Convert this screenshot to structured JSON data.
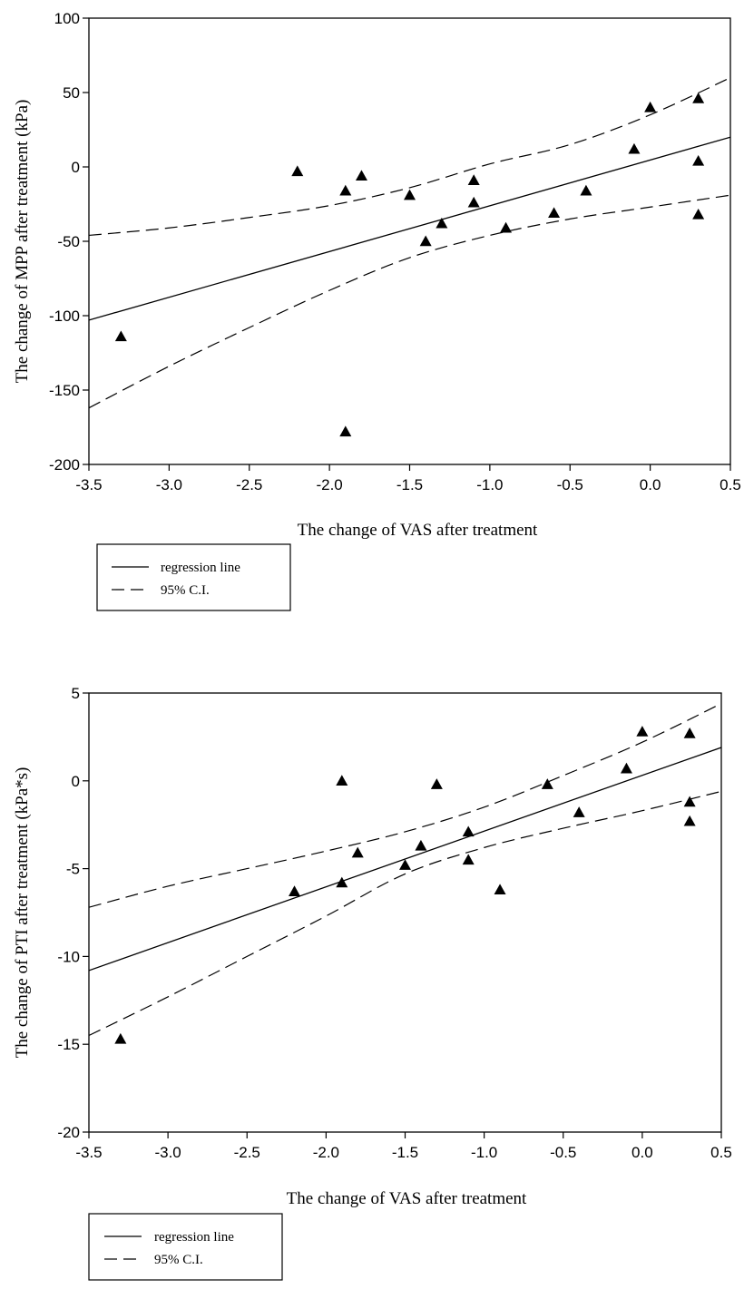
{
  "chart_data": [
    {
      "type": "scatter",
      "title": "",
      "xlabel": "The change of VAS after treatment",
      "ylabel": "The change of MPP after treatment (kPa)",
      "xlim": [
        -3.5,
        0.5
      ],
      "ylim": [
        -200,
        100
      ],
      "x_ticks": [
        "-3.5",
        "-3.0",
        "-2.5",
        "-2.0",
        "-1.5",
        "-1.0",
        "-0.5",
        "0.0",
        "0.5"
      ],
      "y_ticks": [
        "100",
        "50",
        "0",
        "-50",
        "-100",
        "-150",
        "-200"
      ],
      "points": [
        {
          "x": -3.3,
          "y": -114
        },
        {
          "x": -2.2,
          "y": -3
        },
        {
          "x": -1.9,
          "y": -16
        },
        {
          "x": -1.8,
          "y": -6
        },
        {
          "x": -1.9,
          "y": -178
        },
        {
          "x": -1.5,
          "y": -19
        },
        {
          "x": -1.4,
          "y": -50
        },
        {
          "x": -1.3,
          "y": -38
        },
        {
          "x": -1.1,
          "y": -9
        },
        {
          "x": -1.1,
          "y": -24
        },
        {
          "x": -0.9,
          "y": -41
        },
        {
          "x": -0.6,
          "y": -31
        },
        {
          "x": -0.4,
          "y": -16
        },
        {
          "x": -0.1,
          "y": 12
        },
        {
          "x": 0.0,
          "y": 40
        },
        {
          "x": 0.3,
          "y": 46
        },
        {
          "x": 0.3,
          "y": 4
        },
        {
          "x": 0.3,
          "y": -32
        }
      ],
      "regression_line": {
        "x": [
          -3.5,
          0.5
        ],
        "y": [
          -103,
          20
        ]
      },
      "ci_upper": {
        "x": [
          -3.5,
          -3.0,
          -2.5,
          -2.0,
          -1.5,
          -1.0,
          -0.5,
          0.0,
          0.5
        ],
        "y": [
          -46,
          -41,
          -34,
          -26,
          -14,
          2,
          15,
          35,
          60
        ]
      },
      "ci_lower": {
        "x": [
          -3.5,
          -3.0,
          -2.5,
          -2.0,
          -1.5,
          -1.0,
          -0.5,
          0.0,
          0.5
        ],
        "y": [
          -162,
          -134,
          -108,
          -83,
          -61,
          -46,
          -35,
          -27,
          -19
        ]
      },
      "legend": {
        "position": "below",
        "items": [
          {
            "label": "regression line",
            "style": "solid"
          },
          {
            "label": "95% C.I.",
            "style": "dashed"
          }
        ]
      },
      "grid": false,
      "marker": "filled-triangle",
      "colors": {
        "marks": "#000000",
        "background": "#ffffff"
      }
    },
    {
      "type": "scatter",
      "title": "",
      "xlabel": "The change of VAS after treatment",
      "ylabel": "The change of PTI after treatment (kPa*s)",
      "xlim": [
        -3.5,
        0.5
      ],
      "ylim": [
        -20,
        5
      ],
      "x_ticks": [
        "-3.5",
        "-3.0",
        "-2.5",
        "-2.0",
        "-1.5",
        "-1.0",
        "-0.5",
        "0.0",
        "0.5"
      ],
      "y_ticks": [
        "5",
        "0",
        "-5",
        "-10",
        "-15",
        "-20"
      ],
      "points": [
        {
          "x": -3.3,
          "y": -14.7
        },
        {
          "x": -2.2,
          "y": -6.3
        },
        {
          "x": -1.9,
          "y": 0.0
        },
        {
          "x": -1.9,
          "y": -5.8
        },
        {
          "x": -1.8,
          "y": -4.1
        },
        {
          "x": -1.5,
          "y": -4.8
        },
        {
          "x": -1.4,
          "y": -3.7
        },
        {
          "x": -1.3,
          "y": -0.2
        },
        {
          "x": -1.1,
          "y": -2.9
        },
        {
          "x": -1.1,
          "y": -4.5
        },
        {
          "x": -0.9,
          "y": -6.2
        },
        {
          "x": -0.6,
          "y": -0.2
        },
        {
          "x": -0.4,
          "y": -1.8
        },
        {
          "x": -0.1,
          "y": 0.7
        },
        {
          "x": 0.0,
          "y": 2.8
        },
        {
          "x": 0.3,
          "y": 2.7
        },
        {
          "x": 0.3,
          "y": -1.2
        },
        {
          "x": 0.3,
          "y": -2.3
        }
      ],
      "regression_line": {
        "x": [
          -3.5,
          0.5
        ],
        "y": [
          -10.8,
          1.9
        ]
      },
      "ci_upper": {
        "x": [
          -3.5,
          -3.0,
          -2.5,
          -2.0,
          -1.5,
          -1.0,
          -0.5,
          0.0,
          0.5
        ],
        "y": [
          -7.2,
          -6.0,
          -5.0,
          -4.0,
          -2.9,
          -1.5,
          0.3,
          2.2,
          4.4
        ]
      },
      "ci_lower": {
        "x": [
          -3.5,
          -3.0,
          -2.5,
          -2.0,
          -1.5,
          -1.0,
          -0.5,
          0.0,
          0.5
        ],
        "y": [
          -14.5,
          -12.3,
          -10.0,
          -7.7,
          -5.3,
          -3.8,
          -2.7,
          -1.7,
          -0.6
        ]
      },
      "legend": {
        "position": "below",
        "items": [
          {
            "label": "regression line",
            "style": "solid"
          },
          {
            "label": "95% C.I.",
            "style": "dashed"
          }
        ]
      },
      "grid": false,
      "marker": "filled-triangle",
      "colors": {
        "marks": "#000000",
        "background": "#ffffff"
      }
    }
  ]
}
